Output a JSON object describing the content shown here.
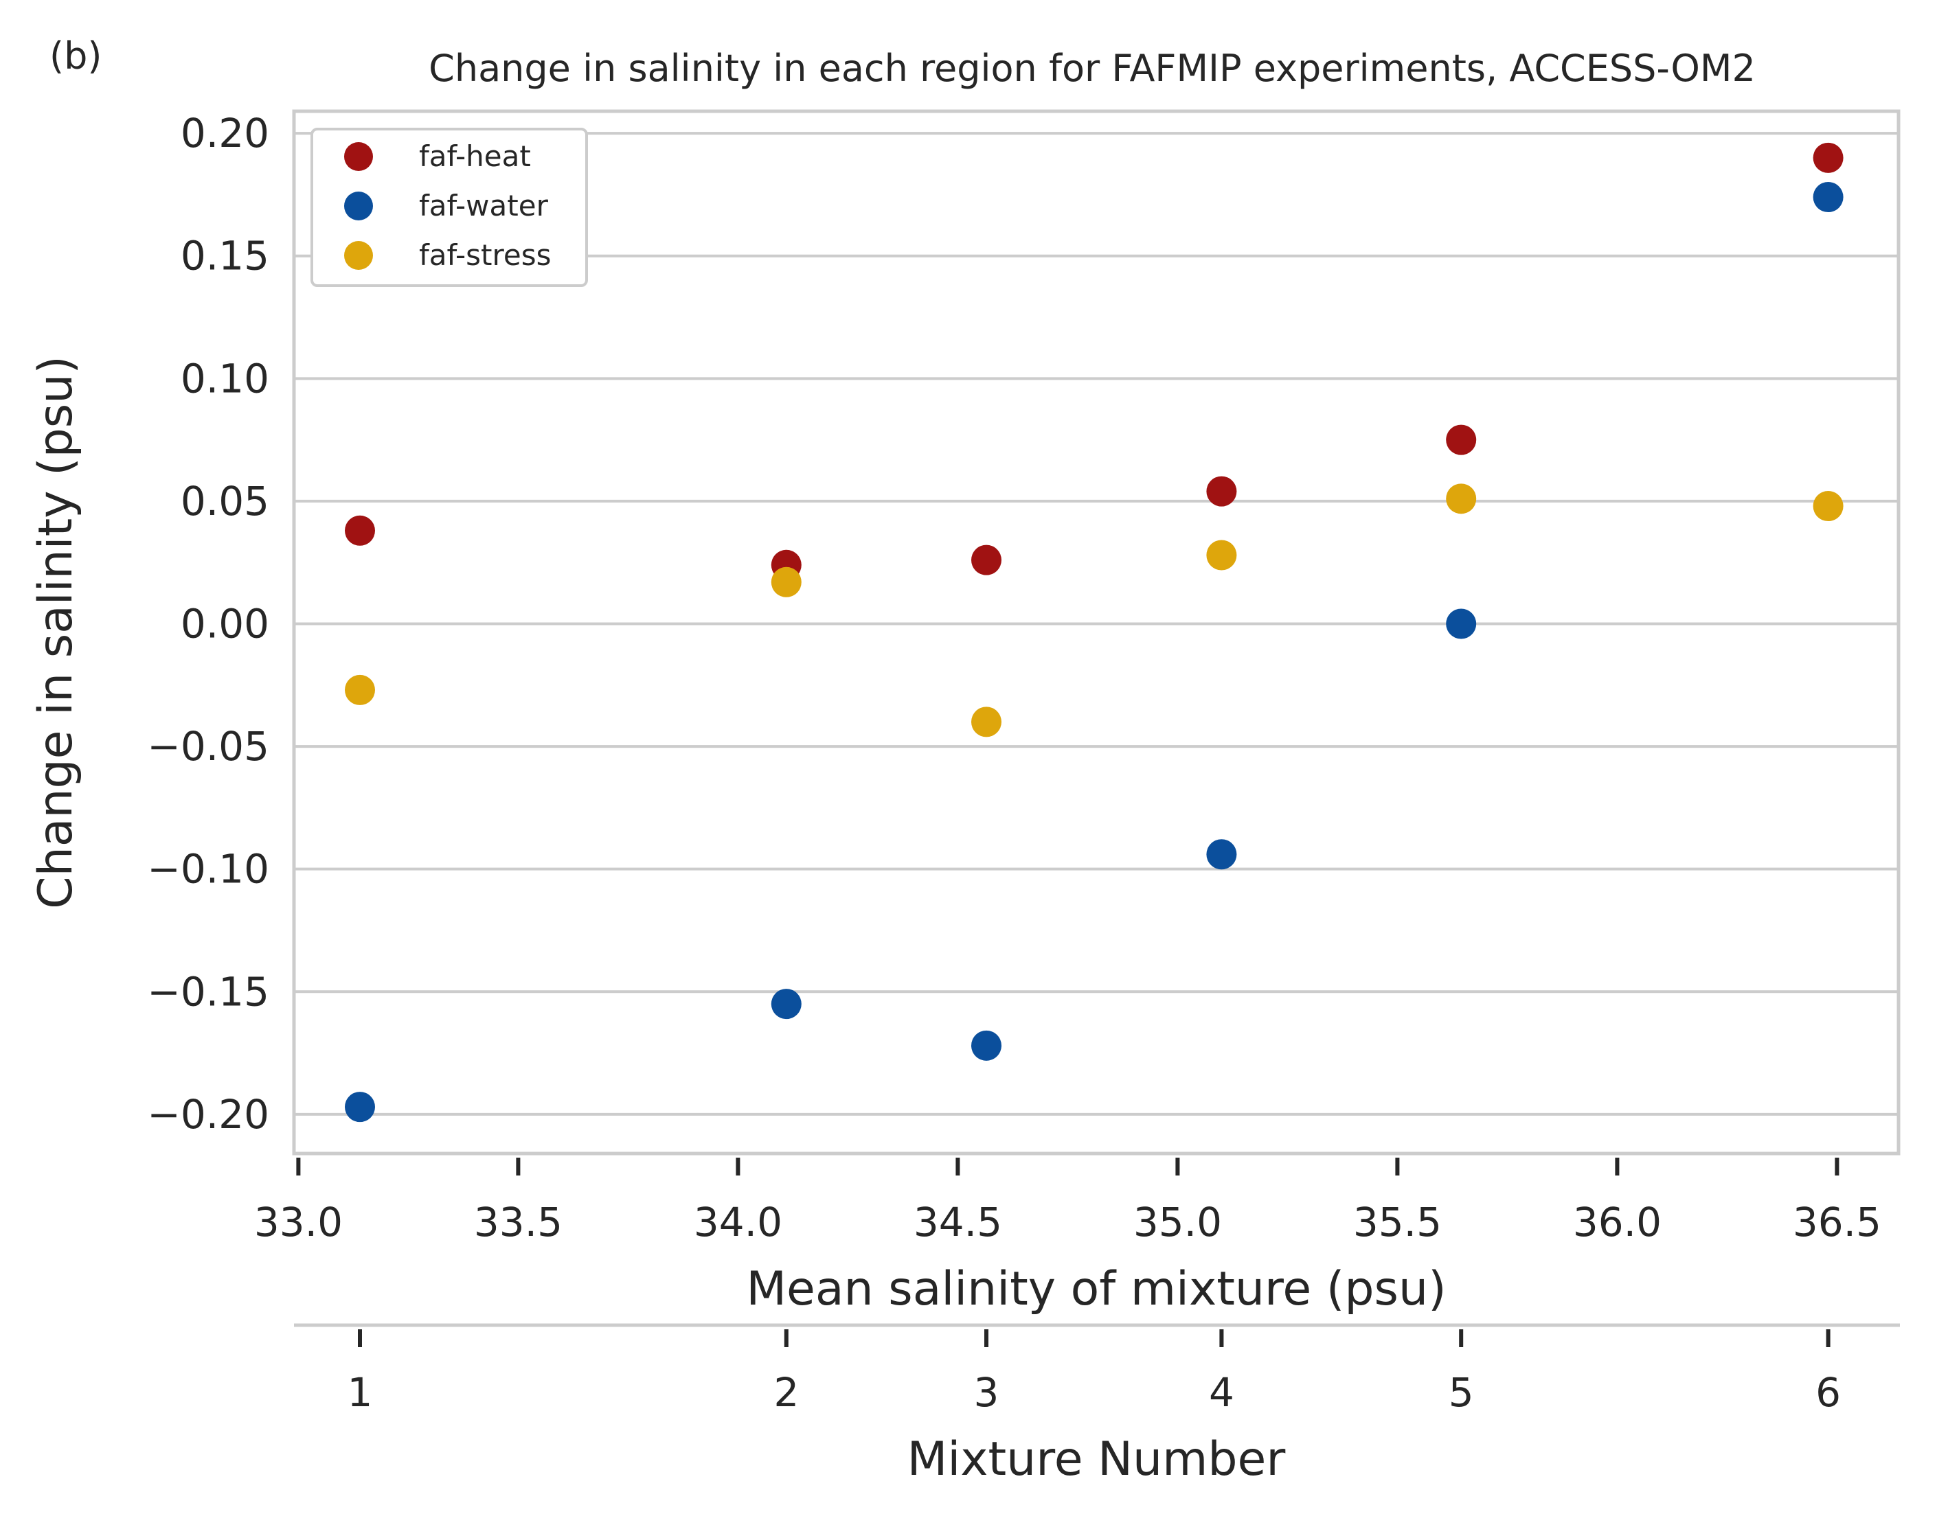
{
  "panel_label": "(b)",
  "chart_data": {
    "type": "scatter",
    "title": "Change in salinity in each region for FAFMIP experiments, ACCESS-OM2",
    "xlabel": "Mean salinity of mixture (psu)",
    "ylabel": "Change in salinity (psu)",
    "xlim": [
      32.99,
      36.64
    ],
    "ylim": [
      -0.216,
      0.209
    ],
    "xticks": [
      "33.0",
      "33.5",
      "34.0",
      "34.5",
      "35.0",
      "35.5",
      "36.0",
      "36.5"
    ],
    "yticks": [
      "0.20",
      "0.15",
      "0.10",
      "0.05",
      "0.00",
      "−0.05",
      "−0.10",
      "−0.15",
      "−0.20"
    ],
    "grid": "horizontal",
    "legend_position": "upper-left",
    "secondary_x_axis": {
      "label": "Mixture Number",
      "tick_labels": [
        "1",
        "2",
        "3",
        "4",
        "5",
        "6"
      ],
      "tick_positions": [
        33.14,
        34.11,
        34.565,
        35.1,
        35.645,
        36.48
      ]
    },
    "x": [
      33.14,
      34.11,
      34.565,
      35.1,
      35.645,
      36.48
    ],
    "series": [
      {
        "name": "faf-heat",
        "color": "#a01212",
        "values": [
          0.038,
          0.024,
          0.026,
          0.054,
          0.075,
          0.19
        ]
      },
      {
        "name": "faf-water",
        "color": "#0b4f9c",
        "values": [
          -0.197,
          -0.155,
          -0.172,
          -0.094,
          0.0,
          0.174
        ]
      },
      {
        "name": "faf-stress",
        "color": "#dea60c",
        "values": [
          -0.027,
          0.017,
          -0.04,
          0.028,
          0.051,
          0.048
        ]
      }
    ]
  }
}
